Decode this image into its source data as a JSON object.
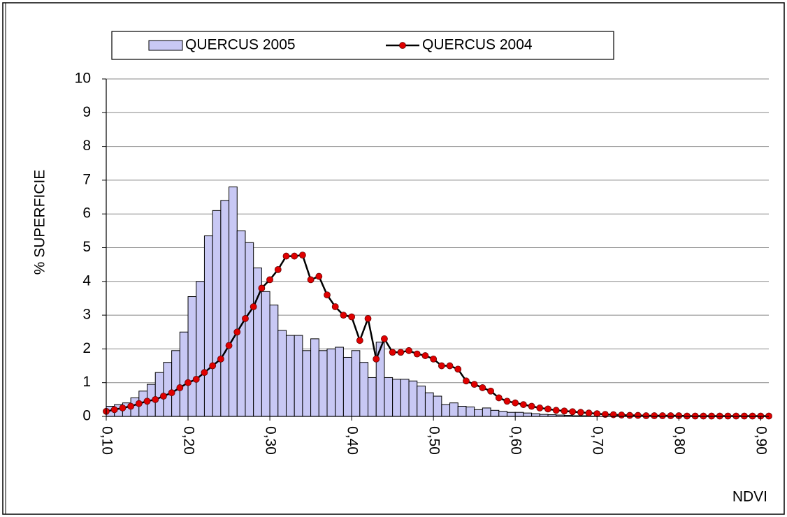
{
  "chart_data": {
    "type": "histogram",
    "ylabel": "% SUPERFICIE",
    "xlabel": "NDVI",
    "xlim": [
      0.1,
      0.91
    ],
    "ylim": [
      0,
      10
    ],
    "yticks": [
      0,
      1,
      2,
      3,
      4,
      5,
      6,
      7,
      8,
      9,
      10
    ],
    "xticks": [
      {
        "value": 0.1,
        "label": "0,10"
      },
      {
        "value": 0.2,
        "label": "0,20"
      },
      {
        "value": 0.3,
        "label": "0,30"
      },
      {
        "value": 0.4,
        "label": "0,40"
      },
      {
        "value": 0.5,
        "label": "0,50"
      },
      {
        "value": 0.6,
        "label": "0,60"
      },
      {
        "value": 0.7,
        "label": "0,70"
      },
      {
        "value": 0.8,
        "label": "0,80"
      },
      {
        "value": 0.9,
        "label": "0,90"
      }
    ],
    "grid": true,
    "legend": "top",
    "series": [
      {
        "name": "QUERCUS 2005",
        "type": "bar",
        "color": "#c8c8f4",
        "bins": [
          0.1,
          0.11,
          0.12,
          0.13,
          0.14,
          0.15,
          0.16,
          0.17,
          0.18,
          0.19,
          0.2,
          0.21,
          0.22,
          0.23,
          0.24,
          0.25,
          0.26,
          0.27,
          0.28,
          0.29,
          0.3,
          0.31,
          0.32,
          0.33,
          0.34,
          0.35,
          0.36,
          0.37,
          0.38,
          0.39,
          0.4,
          0.41,
          0.42,
          0.43,
          0.44,
          0.45,
          0.46,
          0.47,
          0.48,
          0.49,
          0.5,
          0.51,
          0.52,
          0.53,
          0.54,
          0.55,
          0.56,
          0.57,
          0.58,
          0.59,
          0.6,
          0.61,
          0.62,
          0.63,
          0.64,
          0.65,
          0.66,
          0.67,
          0.68,
          0.69,
          0.7
        ],
        "values": [
          0.3,
          0.35,
          0.4,
          0.55,
          0.75,
          0.95,
          1.3,
          1.6,
          1.95,
          2.5,
          3.55,
          4.0,
          5.35,
          6.1,
          6.4,
          6.8,
          5.5,
          5.15,
          4.4,
          3.7,
          3.3,
          2.55,
          2.4,
          2.4,
          1.95,
          2.3,
          1.95,
          2.0,
          2.05,
          1.75,
          1.95,
          1.6,
          1.15,
          2.2,
          1.15,
          1.1,
          1.1,
          1.05,
          0.9,
          0.7,
          0.6,
          0.35,
          0.4,
          0.3,
          0.28,
          0.2,
          0.25,
          0.18,
          0.15,
          0.12,
          0.12,
          0.1,
          0.08,
          0.06,
          0.05,
          0.04,
          0.03,
          0.02,
          0.02,
          0.01
        ]
      },
      {
        "name": "QUERCUS 2004",
        "type": "line",
        "color": "#000000",
        "marker_color": "#e00000",
        "x": [
          0.1,
          0.11,
          0.12,
          0.13,
          0.14,
          0.15,
          0.16,
          0.17,
          0.18,
          0.19,
          0.2,
          0.21,
          0.22,
          0.23,
          0.24,
          0.25,
          0.26,
          0.27,
          0.28,
          0.29,
          0.3,
          0.31,
          0.32,
          0.33,
          0.34,
          0.35,
          0.36,
          0.37,
          0.38,
          0.39,
          0.4,
          0.41,
          0.42,
          0.43,
          0.44,
          0.45,
          0.46,
          0.47,
          0.48,
          0.49,
          0.5,
          0.51,
          0.52,
          0.53,
          0.54,
          0.55,
          0.56,
          0.57,
          0.58,
          0.59,
          0.6,
          0.61,
          0.62,
          0.63,
          0.64,
          0.65,
          0.66,
          0.67,
          0.68,
          0.69,
          0.7,
          0.71,
          0.72,
          0.73,
          0.74,
          0.75,
          0.76,
          0.77,
          0.78,
          0.79,
          0.8,
          0.81,
          0.82,
          0.83,
          0.84,
          0.85,
          0.86,
          0.87,
          0.88,
          0.89,
          0.9,
          0.91
        ],
        "values": [
          0.15,
          0.2,
          0.25,
          0.3,
          0.38,
          0.45,
          0.5,
          0.6,
          0.7,
          0.85,
          1.0,
          1.1,
          1.3,
          1.5,
          1.7,
          2.1,
          2.5,
          2.9,
          3.25,
          3.8,
          4.05,
          4.35,
          4.75,
          4.75,
          4.78,
          4.05,
          4.15,
          3.6,
          3.25,
          3.0,
          2.95,
          2.25,
          2.9,
          1.7,
          2.3,
          1.9,
          1.9,
          1.95,
          1.85,
          1.8,
          1.7,
          1.5,
          1.5,
          1.4,
          1.05,
          0.95,
          0.85,
          0.75,
          0.55,
          0.45,
          0.4,
          0.35,
          0.3,
          0.25,
          0.22,
          0.18,
          0.16,
          0.14,
          0.12,
          0.1,
          0.08,
          0.06,
          0.05,
          0.04,
          0.03,
          0.03,
          0.02,
          0.02,
          0.02,
          0.02,
          0.02,
          0.01,
          0.01,
          0.01,
          0.01,
          0.01,
          0.01,
          0.01,
          0.01,
          0.01,
          0.01,
          0.01
        ]
      }
    ]
  }
}
